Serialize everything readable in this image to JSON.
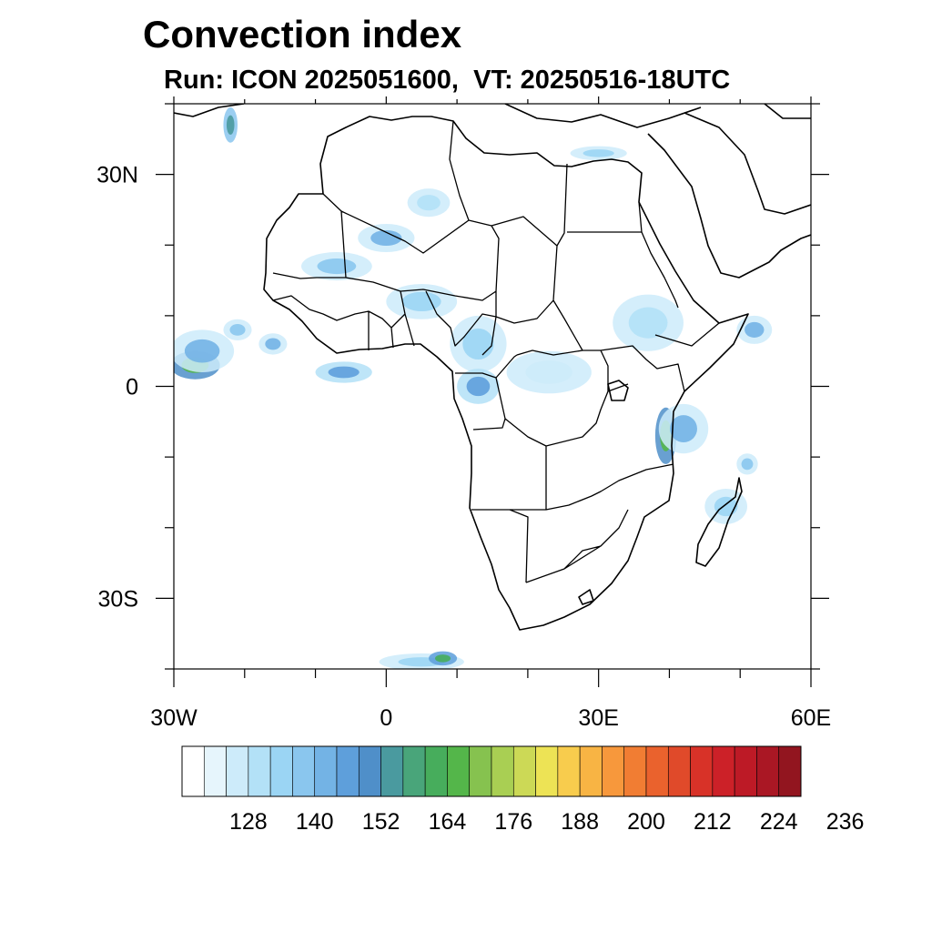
{
  "title": "Convection index",
  "subtitle": "Run: ICON 2025051600,  VT: 20250516-18UTC",
  "map": {
    "lon_range": [
      -30,
      60
    ],
    "lat_range": [
      -40,
      40
    ],
    "x_tick_labels": [
      "30W",
      "0",
      "30E",
      "60E"
    ],
    "y_tick_labels": [
      "30N",
      "0",
      "30S"
    ],
    "land_fill": "#ffffff",
    "border_color": "#000000"
  },
  "colorbar": {
    "colors": [
      "#ffffff",
      "#e6f5fc",
      "#cdebfa",
      "#b3e1f7",
      "#9bd5f4",
      "#8ac6ee",
      "#73b3e5",
      "#5e9fdb",
      "#4f8fc9",
      "#4a9a9f",
      "#49a57a",
      "#47ad5c",
      "#54b64a",
      "#86c24f",
      "#a9cf53",
      "#ccd956",
      "#ede355",
      "#f8cc4d",
      "#f8b444",
      "#f7983c",
      "#f17d33",
      "#ea622d",
      "#e04a2a",
      "#d83228",
      "#cc2128",
      "#bd1a26",
      "#aa1724",
      "#92151f"
    ],
    "labels": [
      "128",
      "140",
      "152",
      "164",
      "176",
      "188",
      "200",
      "212",
      "224",
      "236"
    ]
  },
  "convection_areas": [
    {
      "lon": -27,
      "lat": 3,
      "rx": 3.5,
      "ry": 2,
      "level": 12
    },
    {
      "lon": -26,
      "lat": 5,
      "rx": 4.5,
      "ry": 3,
      "level": 6
    },
    {
      "lon": -21,
      "lat": 8,
      "rx": 2,
      "ry": 1.5,
      "level": 5
    },
    {
      "lon": -16,
      "lat": 6,
      "rx": 2,
      "ry": 1.5,
      "level": 6
    },
    {
      "lon": -6,
      "lat": 2,
      "rx": 4,
      "ry": 1.5,
      "level": 7
    },
    {
      "lon": -7,
      "lat": 17,
      "rx": 5,
      "ry": 2,
      "level": 5
    },
    {
      "lon": 0,
      "lat": 21,
      "rx": 4,
      "ry": 2,
      "level": 6
    },
    {
      "lon": 5,
      "lat": 12,
      "rx": 5,
      "ry": 2.5,
      "level": 4
    },
    {
      "lon": 13,
      "lat": 6,
      "rx": 4,
      "ry": 4,
      "level": 4
    },
    {
      "lon": 13,
      "lat": 0,
      "rx": 3,
      "ry": 2.5,
      "level": 7
    },
    {
      "lon": 23,
      "lat": 2,
      "rx": 6,
      "ry": 3,
      "level": 2
    },
    {
      "lon": 37,
      "lat": 9,
      "rx": 5,
      "ry": 4,
      "level": 3
    },
    {
      "lon": 39.5,
      "lat": -7,
      "rx": 1.5,
      "ry": 4,
      "level": 12
    },
    {
      "lon": 42,
      "lat": -6,
      "rx": 3.5,
      "ry": 3.5,
      "level": 6
    },
    {
      "lon": 52,
      "lat": 8,
      "rx": 2.5,
      "ry": 2,
      "level": 6
    },
    {
      "lon": 51,
      "lat": -11,
      "rx": 1.5,
      "ry": 1.5,
      "level": 5
    },
    {
      "lon": 48,
      "lat": -17,
      "rx": 3,
      "ry": 2.5,
      "level": 4
    },
    {
      "lon": 5,
      "lat": -39,
      "rx": 6,
      "ry": 1.2,
      "level": 4
    },
    {
      "lon": 8,
      "lat": -38.5,
      "rx": 2,
      "ry": 1,
      "level": 11
    },
    {
      "lon": -22,
      "lat": 37,
      "rx": 1,
      "ry": 2.5,
      "level": 9
    },
    {
      "lon": 30,
      "lat": 33,
      "rx": 4,
      "ry": 1,
      "level": 4
    },
    {
      "lon": 6,
      "lat": 26,
      "rx": 3,
      "ry": 2,
      "level": 3
    }
  ]
}
